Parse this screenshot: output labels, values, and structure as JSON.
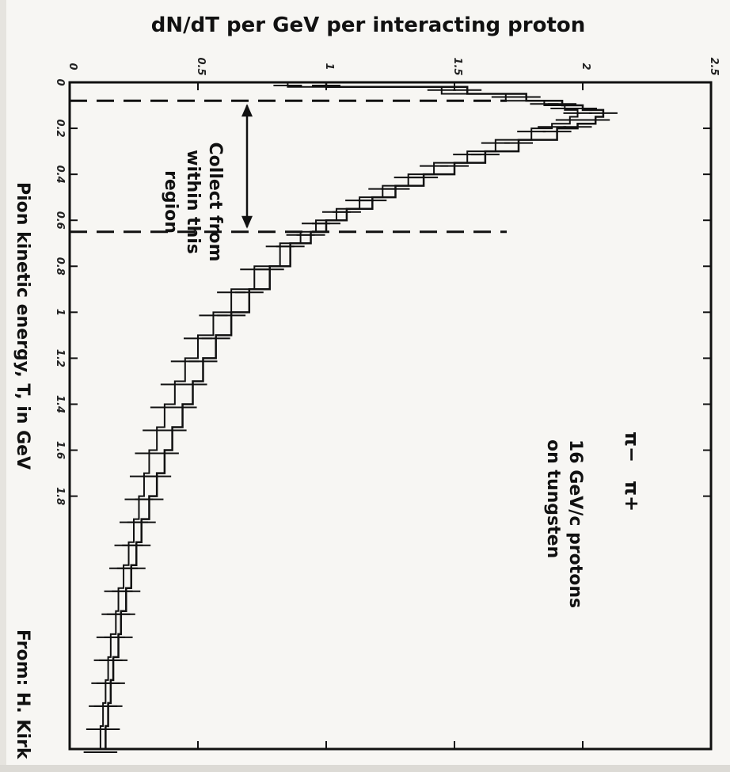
{
  "chart_data": {
    "type": "line",
    "orientation": "rotated-90-clockwise",
    "title": "",
    "ylabel": "dN/dT per GeV per interacting proton",
    "xlabel": "Pion kinetic energy, T, in GeV",
    "credit": "From: H. Kirk",
    "xlim": [
      0,
      2.9
    ],
    "ylim": [
      0,
      2.5
    ],
    "x_ticks": [
      0,
      0.2,
      0.4,
      0.6,
      0.8,
      1,
      1.2,
      1.4,
      1.6,
      1.8
    ],
    "y_ticks": [
      0,
      0.5,
      1,
      1.5,
      2,
      2.5
    ],
    "legend": {
      "entries": [
        "π−",
        "π+"
      ],
      "position": "upper-right",
      "note_line1": "16 GeV/c protons",
      "note_line2": "on tungsten"
    },
    "annotation": {
      "line1": "Collect from",
      "line2": "within this",
      "line3": "region",
      "x_range": [
        0.08,
        0.65
      ]
    },
    "series": [
      {
        "name": "π−",
        "x": [
          0.0,
          0.02,
          0.05,
          0.08,
          0.1,
          0.12,
          0.15,
          0.18,
          0.2,
          0.25,
          0.3,
          0.35,
          0.4,
          0.45,
          0.5,
          0.55,
          0.6,
          0.65,
          0.7,
          0.8,
          0.9,
          1.0,
          1.1,
          1.2,
          1.3,
          1.4,
          1.5,
          1.6,
          1.7,
          1.8,
          1.9,
          2.0,
          2.1,
          2.2,
          2.3,
          2.4,
          2.5,
          2.6,
          2.7,
          2.8,
          2.9
        ],
        "y": [
          1.0,
          1.55,
          1.78,
          1.92,
          2.0,
          2.08,
          2.05,
          1.98,
          1.9,
          1.75,
          1.62,
          1.5,
          1.38,
          1.27,
          1.18,
          1.08,
          1.0,
          0.94,
          0.86,
          0.78,
          0.7,
          0.63,
          0.57,
          0.52,
          0.48,
          0.44,
          0.4,
          0.37,
          0.34,
          0.31,
          0.28,
          0.26,
          0.24,
          0.22,
          0.2,
          0.19,
          0.17,
          0.16,
          0.15,
          0.14,
          0.13
        ]
      },
      {
        "name": "π+",
        "x": [
          0.0,
          0.02,
          0.05,
          0.08,
          0.1,
          0.12,
          0.15,
          0.18,
          0.2,
          0.25,
          0.3,
          0.35,
          0.4,
          0.45,
          0.5,
          0.55,
          0.6,
          0.65,
          0.7,
          0.8,
          0.9,
          1.0,
          1.1,
          1.2,
          1.3,
          1.4,
          1.5,
          1.6,
          1.7,
          1.8,
          1.9,
          2.0,
          2.1,
          2.2,
          2.3,
          2.4,
          2.5,
          2.6,
          2.7,
          2.8,
          2.9
        ],
        "y": [
          0.85,
          1.45,
          1.7,
          1.85,
          1.93,
          1.98,
          1.95,
          1.88,
          1.8,
          1.66,
          1.55,
          1.42,
          1.32,
          1.22,
          1.13,
          1.04,
          0.96,
          0.9,
          0.82,
          0.72,
          0.63,
          0.56,
          0.5,
          0.45,
          0.41,
          0.37,
          0.34,
          0.31,
          0.29,
          0.27,
          0.25,
          0.23,
          0.21,
          0.19,
          0.18,
          0.16,
          0.15,
          0.14,
          0.13,
          0.12,
          0.11
        ]
      }
    ]
  }
}
